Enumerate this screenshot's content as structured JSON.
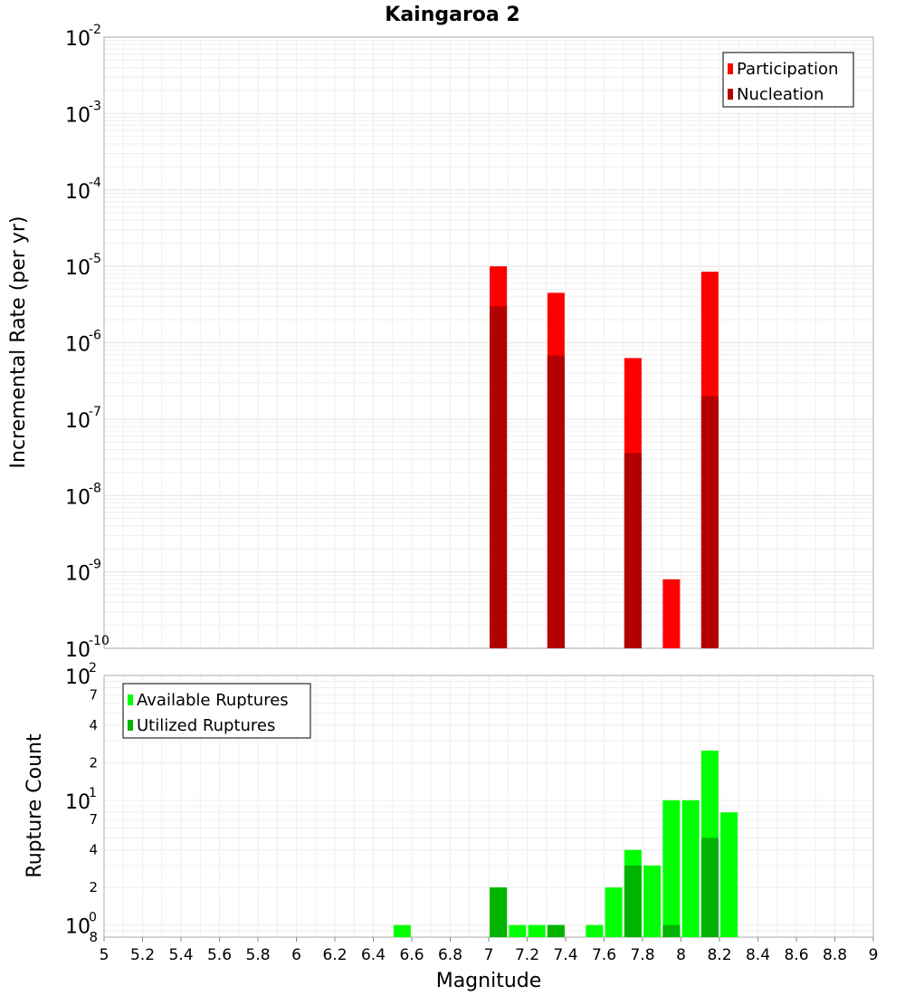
{
  "chart_data": [
    {
      "type": "bar",
      "title": "Kaingaroa 2",
      "xlabel": "",
      "ylabel": "Incremental Rate (per yr)",
      "yscale": "log",
      "ylim": [
        1e-10,
        0.01
      ],
      "xlim": [
        5,
        9
      ],
      "y_tick_exponents": [
        "-2",
        "-3",
        "-4",
        "-5",
        "-6",
        "-7",
        "-8",
        "-9",
        "-10"
      ],
      "y_tick_base": "10",
      "grid": true,
      "legend_position": "top-right",
      "series": [
        {
          "name": "Participation",
          "color": "#ff0000",
          "points": [
            {
              "x": 7.05,
              "y": 1e-05
            },
            {
              "x": 7.35,
              "y": 4.5e-06
            },
            {
              "x": 7.75,
              "y": 6.3e-07
            },
            {
              "x": 7.95,
              "y": 8e-10
            },
            {
              "x": 8.15,
              "y": 8.5e-06
            }
          ]
        },
        {
          "name": "Nucleation",
          "color": "#b30000",
          "points": [
            {
              "x": 7.05,
              "y": 3e-06
            },
            {
              "x": 7.35,
              "y": 6.8e-07
            },
            {
              "x": 7.75,
              "y": 3.6e-08
            },
            {
              "x": 8.15,
              "y": 2e-07
            }
          ]
        }
      ]
    },
    {
      "type": "bar",
      "title": "",
      "xlabel": "Magnitude",
      "ylabel": "Rupture Count",
      "yscale": "log",
      "ylim": [
        0.8,
        100
      ],
      "xlim": [
        5,
        9
      ],
      "y_ticks": [
        {
          "value": 100,
          "base": "10",
          "exp": "2"
        },
        {
          "value": 70,
          "label": "7"
        },
        {
          "value": 40,
          "label": "4"
        },
        {
          "value": 20,
          "label": "2"
        },
        {
          "value": 10,
          "base": "10",
          "exp": "1"
        },
        {
          "value": 7,
          "label": "7"
        },
        {
          "value": 4,
          "label": "4"
        },
        {
          "value": 2,
          "label": "2"
        },
        {
          "value": 1,
          "base": "10",
          "exp": "0"
        },
        {
          "value": 0.8,
          "label": "8"
        }
      ],
      "x_ticks": [
        "5",
        "5.2",
        "5.4",
        "5.6",
        "5.8",
        "6",
        "6.2",
        "6.4",
        "6.6",
        "6.8",
        "7",
        "7.2",
        "7.4",
        "7.6",
        "7.8",
        "8",
        "8.2",
        "8.4",
        "8.6",
        "8.8",
        "9"
      ],
      "grid": true,
      "legend_position": "top-left",
      "series": [
        {
          "name": "Available Ruptures",
          "color": "#00ff00",
          "points": [
            {
              "x": 6.55,
              "y": 1
            },
            {
              "x": 7.05,
              "y": 2
            },
            {
              "x": 7.15,
              "y": 1
            },
            {
              "x": 7.25,
              "y": 1
            },
            {
              "x": 7.35,
              "y": 1
            },
            {
              "x": 7.55,
              "y": 1
            },
            {
              "x": 7.65,
              "y": 2
            },
            {
              "x": 7.75,
              "y": 4
            },
            {
              "x": 7.85,
              "y": 3
            },
            {
              "x": 7.95,
              "y": 10
            },
            {
              "x": 8.05,
              "y": 10
            },
            {
              "x": 8.15,
              "y": 25
            },
            {
              "x": 8.25,
              "y": 8
            }
          ]
        },
        {
          "name": "Utilized Ruptures",
          "color": "#00b300",
          "points": [
            {
              "x": 7.05,
              "y": 2
            },
            {
              "x": 7.35,
              "y": 1
            },
            {
              "x": 7.75,
              "y": 3
            },
            {
              "x": 7.95,
              "y": 1
            },
            {
              "x": 8.15,
              "y": 5
            }
          ]
        }
      ]
    }
  ]
}
